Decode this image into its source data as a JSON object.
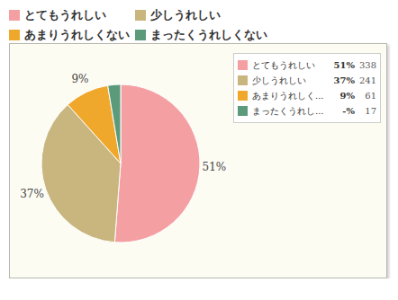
{
  "chart_data": {
    "type": "pie",
    "categories": [
      "とてもうれしい",
      "少しうれしい",
      "あまりうれしくない",
      "まったくうれしくない"
    ],
    "values": [
      51,
      37,
      9,
      2.6
    ],
    "value_labels": [
      "51%",
      "37%",
      "9%",
      null
    ],
    "colors": [
      "#f4a0a3",
      "#c8b67e",
      "#f0a82c",
      "#5b9a7b"
    ],
    "data_labels": true,
    "legend": "top",
    "legend_labels": [
      "とてもうれしい",
      "少しうれしい",
      "あまりうれしく...",
      "まったくうれし..."
    ],
    "legend_percent_labels": [
      "51%",
      "37%",
      "9%",
      "-%"
    ],
    "counts": [
      338,
      241,
      61,
      17
    ]
  }
}
